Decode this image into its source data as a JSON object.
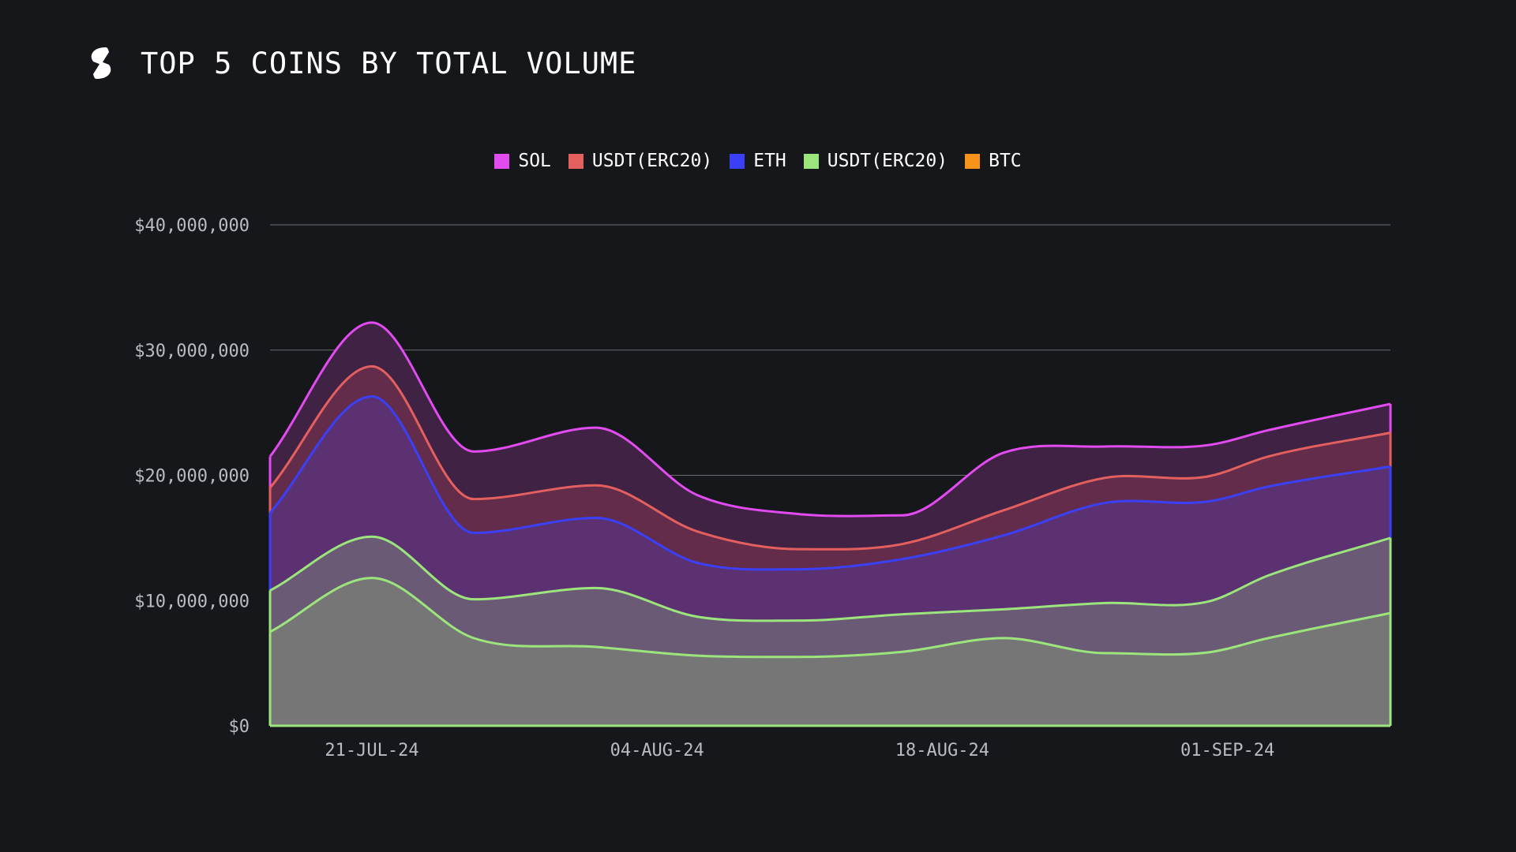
{
  "header": {
    "title": "TOP 5 COINS BY TOTAL VOLUME",
    "logo_icon": "logo-icon"
  },
  "colors": {
    "background": "#16171b",
    "grid": "#6b6d73",
    "text": "#ffffff",
    "tick_text": "#b8bcc4"
  },
  "chart_data": {
    "type": "area",
    "stacked": false,
    "title": "TOP 5 COINS BY TOTAL VOLUME",
    "xlabel": "",
    "ylabel": "",
    "x": [
      "2024-07-16",
      "2024-07-26",
      "2024-08-05",
      "2024-08-15",
      "2024-08-25",
      "2024-09-03",
      "2024-09-09"
    ],
    "x_ticks": [
      {
        "label": "21-JUL-24",
        "date": "2024-07-21"
      },
      {
        "label": "04-AUG-24",
        "date": "2024-08-04"
      },
      {
        "label": "18-AUG-24",
        "date": "2024-08-18"
      },
      {
        "label": "01-SEP-24",
        "date": "2024-09-01"
      }
    ],
    "ylim": [
      0,
      40000000
    ],
    "y_ticks": [
      {
        "label": "$0",
        "value": 0
      },
      {
        "label": "$10,000,000",
        "value": 10000000
      },
      {
        "label": "$20,000,000",
        "value": 20000000
      },
      {
        "label": "$30,000,000",
        "value": 30000000
      },
      {
        "label": "$40,000,000",
        "value": 40000000
      }
    ],
    "grid": true,
    "legend_position": "top-center",
    "series": [
      {
        "name": "SOL",
        "color": "#e24bf0",
        "fill": "#3f2244",
        "x": [
          "2024-07-16",
          "2024-07-21",
          "2024-07-26",
          "2024-08-01",
          "2024-08-06",
          "2024-08-11",
          "2024-08-16",
          "2024-08-21",
          "2024-08-26",
          "2024-08-31",
          "2024-09-03",
          "2024-09-09"
        ],
        "values": [
          21500000,
          32200000,
          21900000,
          23800000,
          18400000,
          16900000,
          16800000,
          21800000,
          22300000,
          22400000,
          23600000,
          25700000
        ]
      },
      {
        "name": "USDT(ERC20)",
        "color": "#e4605f",
        "fill": "#632c4a",
        "x": [
          "2024-07-16",
          "2024-07-21",
          "2024-07-26",
          "2024-08-01",
          "2024-08-06",
          "2024-08-11",
          "2024-08-16",
          "2024-08-21",
          "2024-08-26",
          "2024-08-31",
          "2024-09-03",
          "2024-09-09"
        ],
        "values": [
          19000000,
          28700000,
          18100000,
          19200000,
          15500000,
          14100000,
          14500000,
          17200000,
          19800000,
          19900000,
          21500000,
          23400000
        ]
      },
      {
        "name": "ETH",
        "color": "#3b3ff5",
        "fill": "#5c3172",
        "x": [
          "2024-07-16",
          "2024-07-21",
          "2024-07-26",
          "2024-08-01",
          "2024-08-06",
          "2024-08-11",
          "2024-08-16",
          "2024-08-21",
          "2024-08-26",
          "2024-08-31",
          "2024-09-03",
          "2024-09-09"
        ],
        "values": [
          17000000,
          26300000,
          15400000,
          16600000,
          13000000,
          12500000,
          13300000,
          15200000,
          17800000,
          17900000,
          19100000,
          20700000
        ]
      },
      {
        "name": "USDT(ERC20)",
        "color": "#9ce57c",
        "fill": "#6b5a76",
        "x": [
          "2024-07-16",
          "2024-07-21",
          "2024-07-26",
          "2024-08-01",
          "2024-08-06",
          "2024-08-11",
          "2024-08-16",
          "2024-08-21",
          "2024-08-26",
          "2024-08-31",
          "2024-09-03",
          "2024-09-09"
        ],
        "values": [
          10800000,
          15100000,
          10100000,
          11000000,
          8700000,
          8400000,
          8900000,
          9300000,
          9800000,
          9900000,
          12000000,
          15000000
        ]
      },
      {
        "name": "BTC",
        "color": "#f7931a",
        "fill": "#767676",
        "line_color": "#9ce57c",
        "x": [
          "2024-07-16",
          "2024-07-21",
          "2024-07-26",
          "2024-08-01",
          "2024-08-06",
          "2024-08-11",
          "2024-08-16",
          "2024-08-21",
          "2024-08-26",
          "2024-08-31",
          "2024-09-03",
          "2024-09-09"
        ],
        "values": [
          7500000,
          11800000,
          7000000,
          6300000,
          5600000,
          5500000,
          5900000,
          7000000,
          5800000,
          5850000,
          7000000,
          9000000
        ]
      }
    ]
  }
}
